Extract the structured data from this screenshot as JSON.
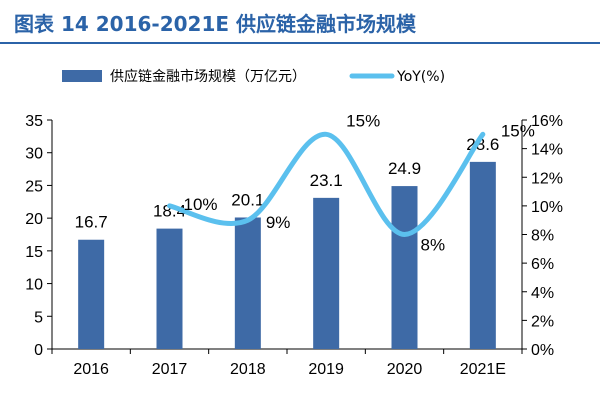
{
  "header": {
    "title": "图表 14 2016-2021E 供应链金融市场规模"
  },
  "chart_data": {
    "type": "bar",
    "categories": [
      "2016",
      "2017",
      "2018",
      "2019",
      "2020",
      "2021E"
    ],
    "series": [
      {
        "name": "供应链金融市场规模（万亿元）",
        "kind": "bar",
        "axis": "left",
        "values": [
          16.7,
          18.4,
          20.1,
          23.1,
          24.9,
          28.6
        ],
        "color": "#3e6aa6"
      },
      {
        "name": "YoY(%)",
        "kind": "line",
        "axis": "right",
        "values": [
          null,
          10,
          9,
          15,
          8,
          15
        ],
        "color": "#5bc0ee"
      }
    ],
    "y_left": {
      "ylim": [
        0,
        35
      ],
      "ticks": [
        0,
        5,
        10,
        15,
        20,
        25,
        30,
        35
      ]
    },
    "y_right": {
      "ylim": [
        0,
        16
      ],
      "ticks": [
        "0%",
        "2%",
        "4%",
        "6%",
        "8%",
        "10%",
        "12%",
        "14%",
        "16%"
      ]
    },
    "bar_labels": [
      "16.7",
      "18.4",
      "20.1",
      "23.1",
      "24.9",
      "28.6"
    ],
    "line_labels": [
      "10%",
      "9%",
      "15%",
      "8%",
      "15%"
    ],
    "legend_position": "top"
  }
}
